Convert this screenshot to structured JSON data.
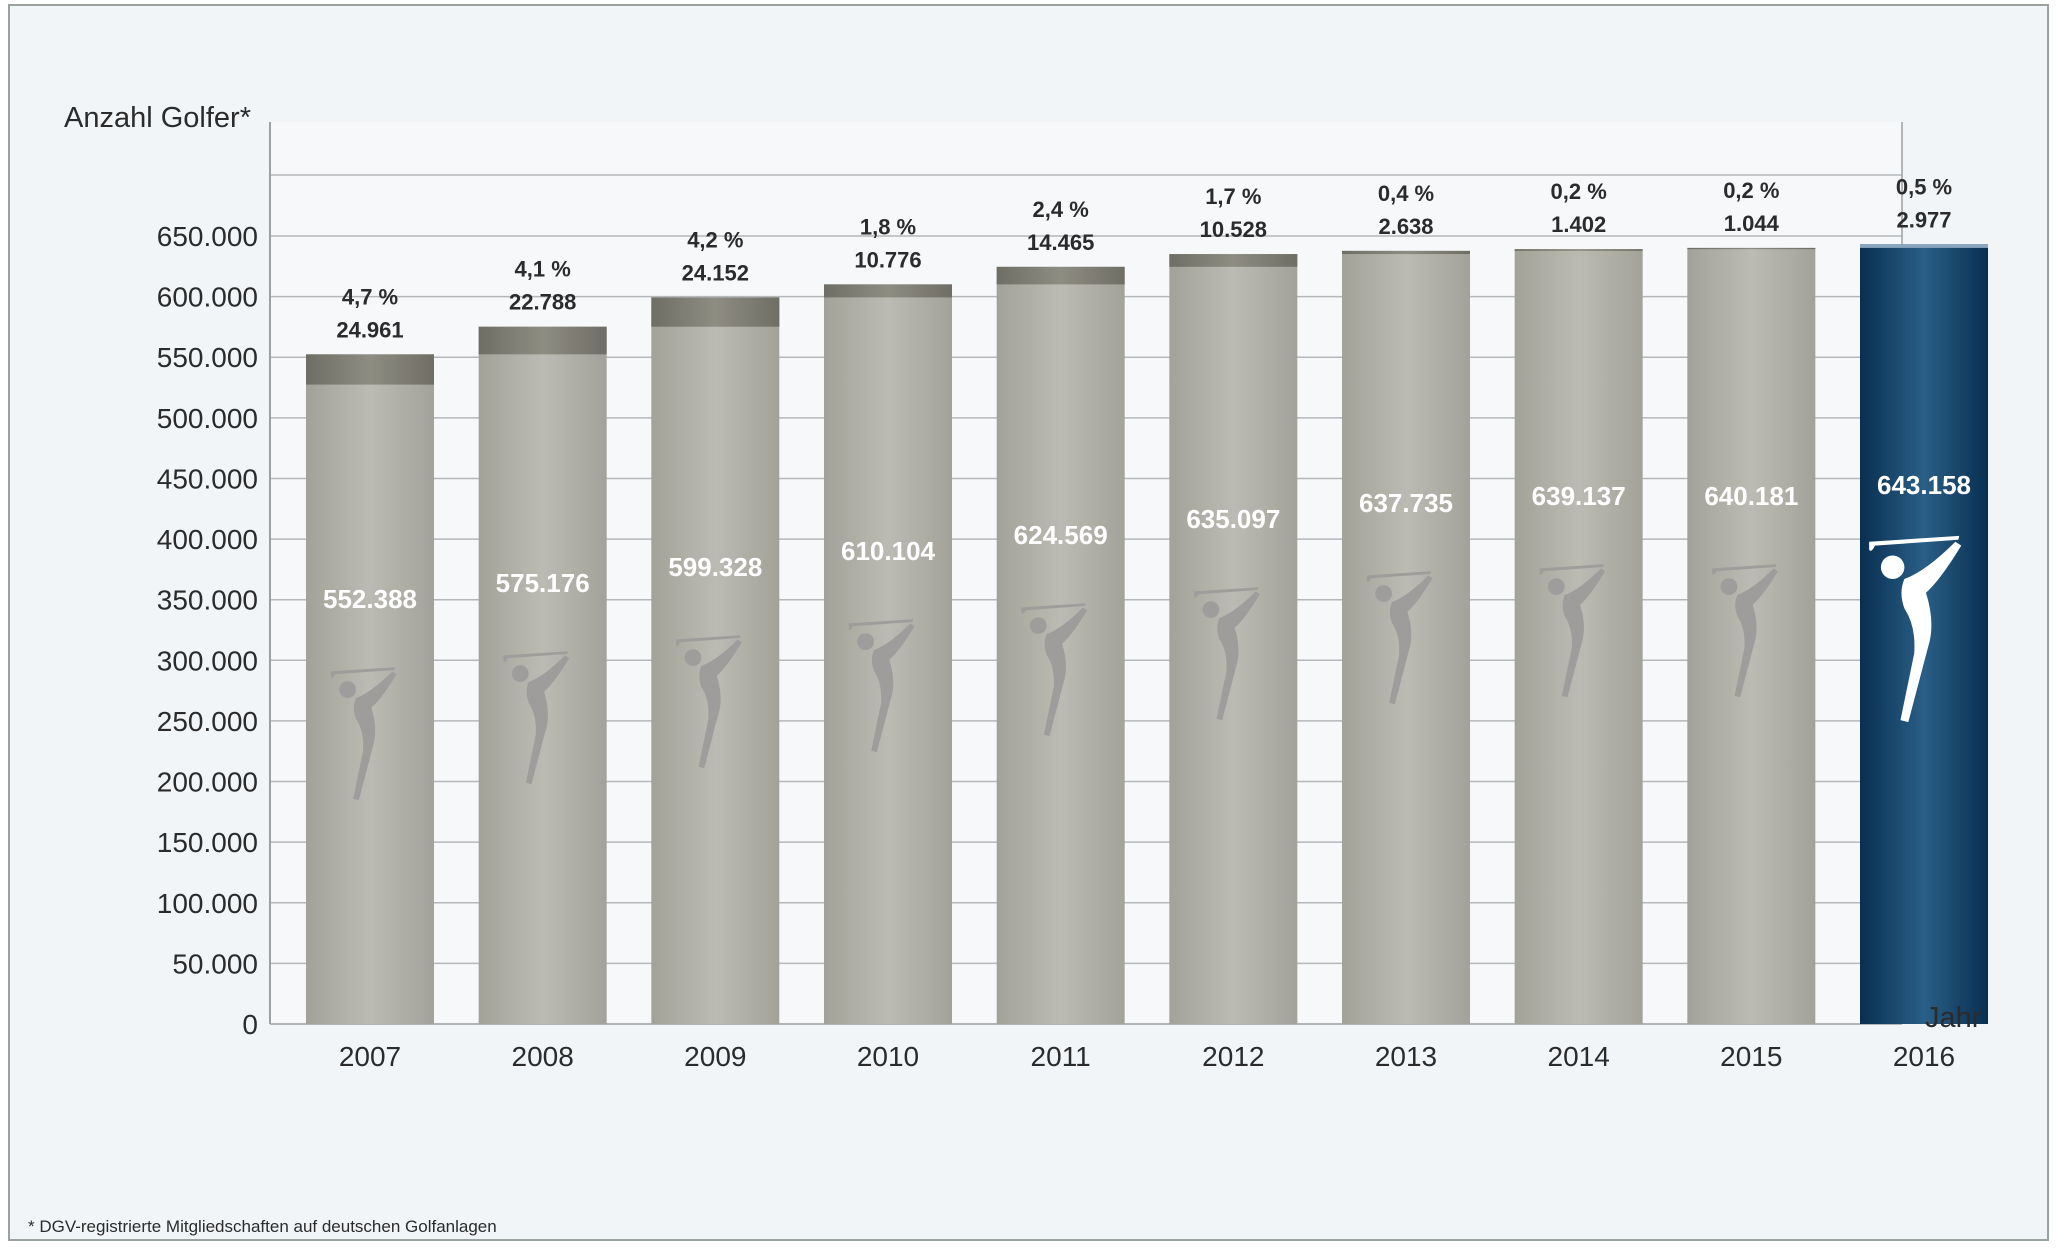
{
  "chart_data": {
    "type": "bar",
    "ylabel": "Anzahl Golfer*",
    "xlabel": "Jahr",
    "ylim": [
      0,
      650000
    ],
    "yticks": [
      "0",
      "50.000",
      "100.000",
      "150.000",
      "200.000",
      "250.000",
      "300.000",
      "350.000",
      "400.000",
      "450.000",
      "500.000",
      "550.000",
      "600.000",
      "650.000"
    ],
    "categories": [
      "2007",
      "2008",
      "2009",
      "2010",
      "2011",
      "2012",
      "2013",
      "2014",
      "2015",
      "2016"
    ],
    "values": [
      552388,
      575176,
      599328,
      610104,
      624569,
      635097,
      637735,
      639137,
      640181,
      643158
    ],
    "value_labels": [
      "552.388",
      "575.176",
      "599.328",
      "610.104",
      "624.569",
      "635.097",
      "637.735",
      "639.137",
      "640.181",
      "643.158"
    ],
    "increase": [
      24961,
      22788,
      24152,
      10776,
      14465,
      10528,
      2638,
      1402,
      1044,
      2977
    ],
    "increase_labels": [
      "24.961",
      "22.788",
      "24.152",
      "10.776",
      "14.465",
      "10.528",
      "2.638",
      "1.402",
      "1.044",
      "2.977"
    ],
    "growth_labels": [
      "4,7 %",
      "4,1 %",
      "4,2 %",
      "1,8 %",
      "2,4 %",
      "1,7 %",
      "0,4 %",
      "0,2 %",
      "0,2 %",
      "0,5 %"
    ],
    "highlight_category": "2016",
    "grid": true,
    "colors": {
      "bar": "#b3b2aa",
      "increase": "#7e7e74",
      "highlight": "#0d3d63",
      "highlight_cap": "#8aa6bf",
      "golfer_icon": "#9e9d9c",
      "golfer_icon_highlight": "#ffffff",
      "background": "#f1f5f8",
      "plot_background": "#f6f8fa"
    }
  },
  "footnote": "*  DGV-registrierte Mitgliedschaften auf deutschen Golfanlagen",
  "icons": {
    "bar_icon": "golfer-icon"
  }
}
